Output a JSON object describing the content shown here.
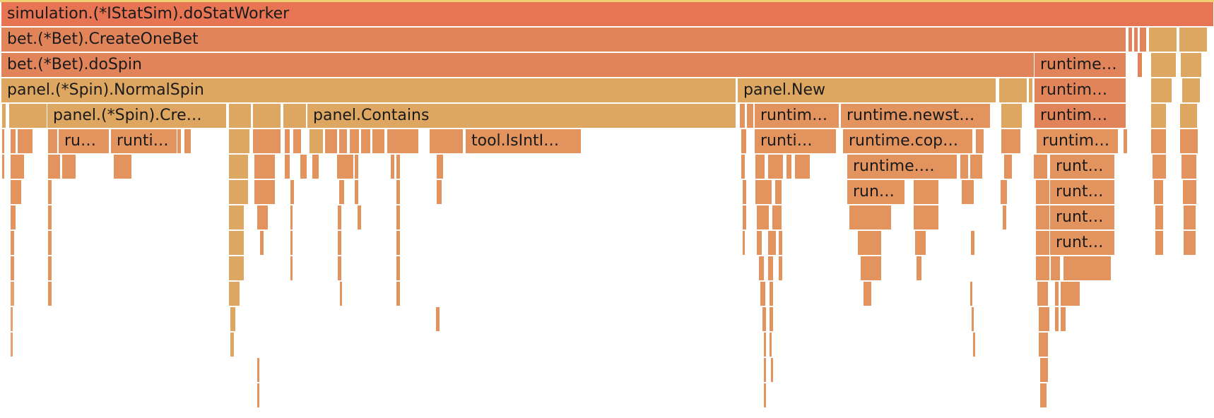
{
  "flamegraph": {
    "frames": [
      {
        "label": "simulation.(*IStatSim).doStatWorker",
        "color": "#e77553"
      },
      {
        "label": "bet.(*Bet).CreateOneBet",
        "color": "#e2845a"
      },
      {
        "label": "bet.(*Bet).doSpin",
        "color": "#e2845a"
      },
      {
        "label": "runtime…",
        "color": "#e2845a"
      },
      {
        "label": "panel.(*Spin).NormalSpin",
        "color": "#dea761"
      },
      {
        "label": "panel.New",
        "color": "#dea761"
      },
      {
        "label": "runtim…",
        "color": "#e2845a"
      },
      {
        "label": "panel.(*Spin).Cre…",
        "color": "#dea761"
      },
      {
        "label": "panel.Contains",
        "color": "#dea761"
      },
      {
        "label": "runtim…",
        "color": "#e2935e"
      },
      {
        "label": "runtime.newst…",
        "color": "#e2935e"
      },
      {
        "label": "runtim…",
        "color": "#e2845a"
      },
      {
        "label": "ru…",
        "color": "#e2935e"
      },
      {
        "label": "runti…",
        "color": "#e2935e"
      },
      {
        "label": "tool.IsIntI…",
        "color": "#e2935e"
      },
      {
        "label": "runti…",
        "color": "#e2935e"
      },
      {
        "label": "runtime.cop…",
        "color": "#e2935e"
      },
      {
        "label": "runtim…",
        "color": "#e2935e"
      },
      {
        "label": "runtime.…",
        "color": "#e2935e"
      },
      {
        "label": "runt…",
        "color": "#e2935e"
      },
      {
        "label": "run…",
        "color": "#e2935e"
      },
      {
        "label": "runt…",
        "color": "#e2935e"
      },
      {
        "label": "runt…",
        "color": "#e2935e"
      },
      {
        "label": "runt…",
        "color": "#e2935e"
      }
    ]
  }
}
